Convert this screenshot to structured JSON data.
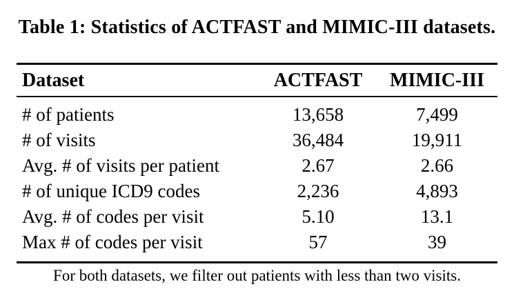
{
  "page": {
    "background_color": "#ffffff",
    "text_color": "#000000"
  },
  "caption": "Table 1: Statistics of ACTFAST and MIMIC-III datasets.",
  "table": {
    "header": {
      "dataset": "Dataset",
      "actfast": "ACTFAST",
      "mimic": "MIMIC-III"
    },
    "rows": [
      {
        "label": "# of patients",
        "actfast": "13,658",
        "mimic": "7,499"
      },
      {
        "label": "# of visits",
        "actfast": "36,484",
        "mimic": "19,911"
      },
      {
        "label": "Avg. # of visits per patient",
        "actfast": "2.67",
        "mimic": "2.66"
      },
      {
        "label": "# of unique ICD9 codes",
        "actfast": "2,236",
        "mimic": "4,893"
      },
      {
        "label": "Avg. # of codes per visit",
        "actfast": "5.10",
        "mimic": "13.1"
      },
      {
        "label": "Max # of codes per visit",
        "actfast": "57",
        "mimic": "39"
      }
    ],
    "footnote": "For both datasets, we filter out patients with less than two visits."
  },
  "chart_data": {
    "type": "table",
    "title": "Table 1: Statistics of ACTFAST and MIMIC-III datasets.",
    "columns": [
      "Dataset",
      "ACTFAST",
      "MIMIC-III"
    ],
    "series": [
      {
        "name": "ACTFAST",
        "values": [
          13658,
          36484,
          2.67,
          2236,
          5.1,
          57
        ]
      },
      {
        "name": "MIMIC-III",
        "values": [
          7499,
          19911,
          2.66,
          4893,
          13.1,
          39
        ]
      }
    ],
    "categories": [
      "# of patients",
      "# of visits",
      "Avg. # of visits per patient",
      "# of unique ICD9 codes",
      "Avg. # of codes per visit",
      "Max # of codes per visit"
    ],
    "annotations": [
      "For both datasets, we filter out patients with less than two visits."
    ]
  }
}
